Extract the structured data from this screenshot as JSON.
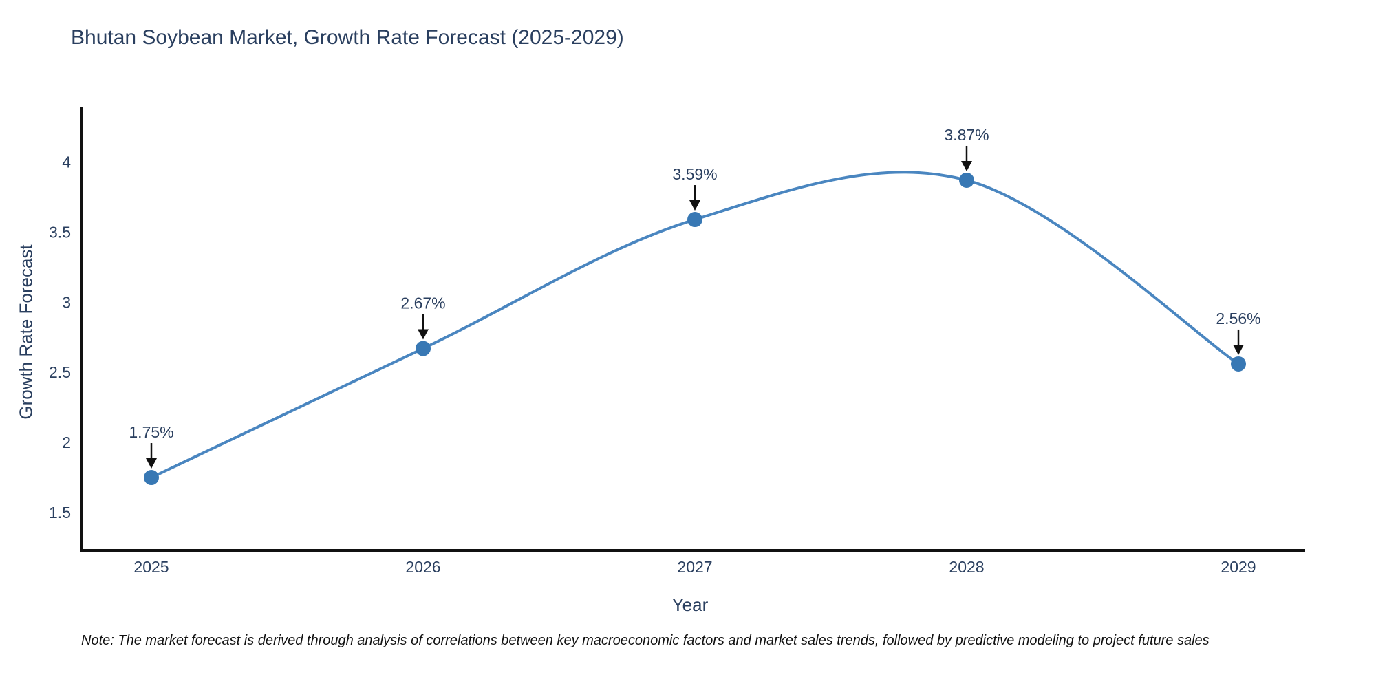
{
  "title": "Bhutan Soybean Market, Growth Rate Forecast (2025-2029)",
  "note": "Note: The market forecast is derived through analysis of correlations between key macroeconomic factors and market sales trends, followed by predictive modeling to project future sales",
  "chart_data": {
    "type": "line",
    "title": "Bhutan Soybean Market, Growth Rate Forecast (2025-2029)",
    "xlabel": "Year",
    "ylabel": "Growth Rate Forecast",
    "categories": [
      "2025",
      "2026",
      "2027",
      "2028",
      "2029"
    ],
    "series": [
      {
        "name": "Growth Rate Forecast",
        "values": [
          1.75,
          2.67,
          3.59,
          3.87,
          2.56
        ]
      }
    ],
    "point_labels": [
      "1.75%",
      "2.67%",
      "3.59%",
      "3.87%",
      "2.56%"
    ],
    "yticks": [
      1.5,
      2,
      2.5,
      3,
      3.5,
      4
    ],
    "ylim": [
      1.23,
      4.39
    ],
    "line_shape": "spline",
    "grid": false,
    "legend": "none",
    "colors": {
      "line": "#4a86c0",
      "marker": "#3878b4",
      "axis": "#111111",
      "tick_text": "#2a3f5f",
      "annotation_text": "#2a3f5f",
      "arrow": "#111111"
    }
  }
}
